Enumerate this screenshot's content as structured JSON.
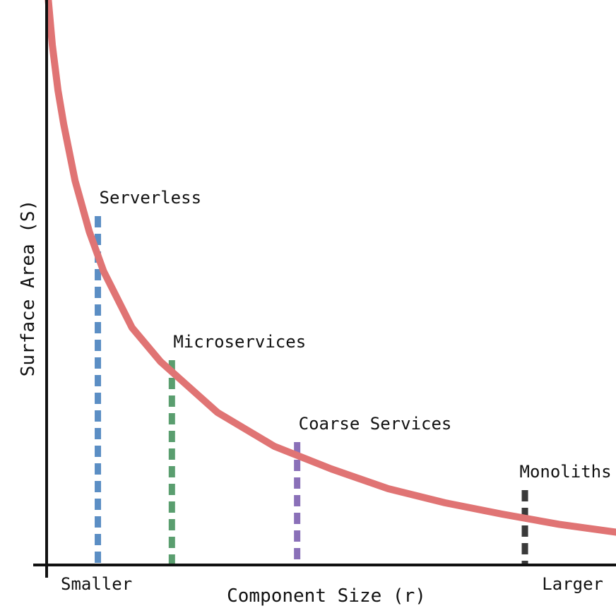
{
  "chart_data": {
    "type": "line",
    "title": "",
    "xlabel": "Component Size (r)",
    "ylabel": "Surface Area (S)",
    "x_tick_labels": {
      "left": "Smaller",
      "right": "Larger"
    },
    "grid": false,
    "legend": "none",
    "xlim": [
      0,
      10
    ],
    "ylim": [
      0,
      10
    ],
    "series": [
      {
        "color": "#e07474",
        "x": [
          0.03,
          0.1,
          0.2,
          0.3,
          0.5,
          0.75,
          1.0,
          1.5,
          2.0,
          3.0,
          4.0,
          5.0,
          6.0,
          7.0,
          8.0,
          9.0,
          10.0
        ],
        "y": [
          10.0,
          9.2,
          8.4,
          7.8,
          6.8,
          5.9,
          5.2,
          4.2,
          3.6,
          2.7,
          2.1,
          1.7,
          1.35,
          1.1,
          0.9,
          0.72,
          0.58
        ]
      }
    ],
    "annotations": [
      {
        "label": "Serverless",
        "x": 0.9,
        "y": 5.75,
        "color": "#5b8ec4"
      },
      {
        "label": "Microservices",
        "x": 2.2,
        "y": 3.2,
        "color": "#5a9e6f"
      },
      {
        "label": "Coarse Services",
        "x": 4.4,
        "y": 1.75,
        "color": "#8a70b8"
      },
      {
        "label": "Monoliths",
        "x": 8.4,
        "y": 0.9,
        "color": "#3a3a3a"
      }
    ],
    "axis_color": "#111111"
  }
}
